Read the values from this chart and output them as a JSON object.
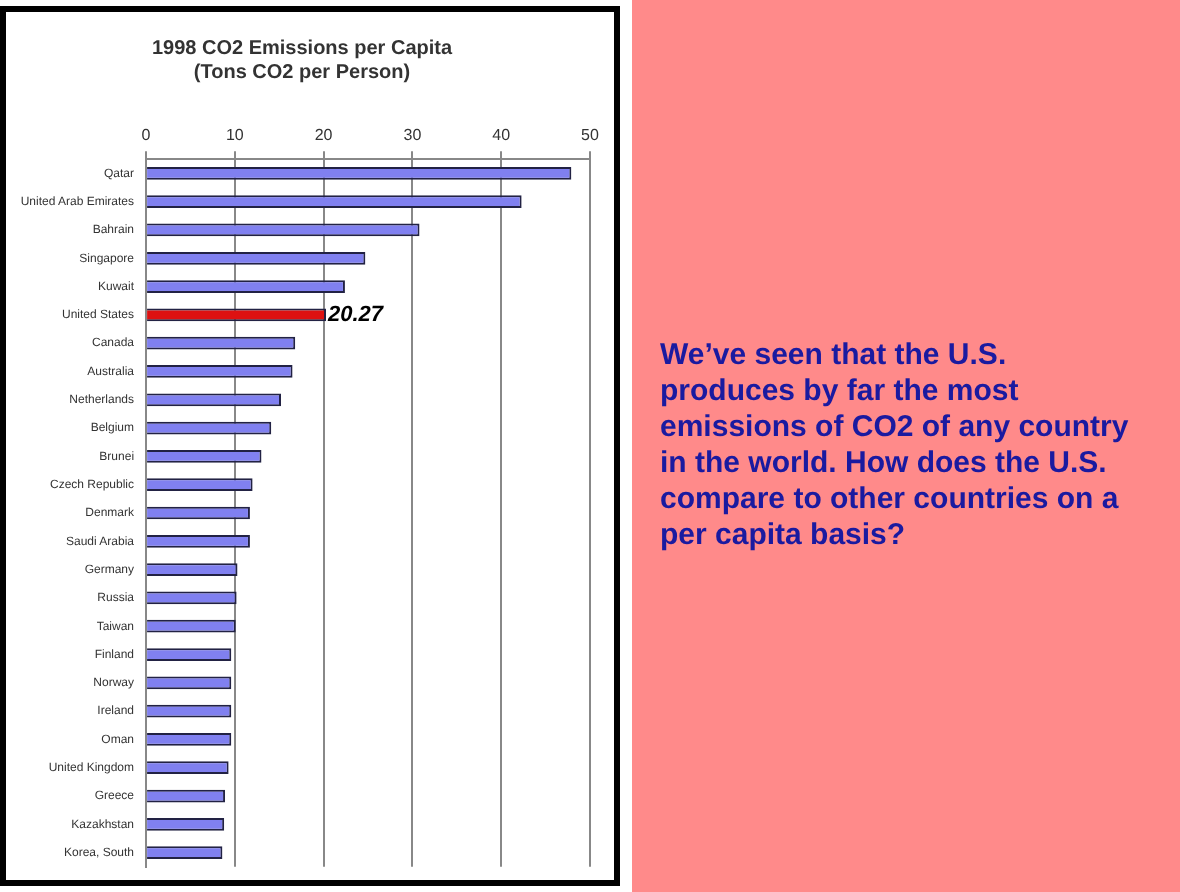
{
  "chart_data": {
    "type": "bar",
    "orientation": "horizontal",
    "title": "1998 CO2 Emissions per Capita",
    "subtitle": "(Tons CO2 per Person)",
    "categories": [
      "Qatar",
      "United Arab Emirates",
      "Bahrain",
      "Singapore",
      "Kuwait",
      "United States",
      "Canada",
      "Australia",
      "Netherlands",
      "Belgium",
      "Brunei",
      "Czech Republic",
      "Denmark",
      "Saudi Arabia",
      "Germany",
      "Russia",
      "Taiwan",
      "Finland",
      "Norway",
      "Ireland",
      "Oman",
      "United Kingdom",
      "Greece",
      "Kazakhstan",
      "Korea, South"
    ],
    "values": [
      47.9,
      42.3,
      30.8,
      24.7,
      22.4,
      20.27,
      16.8,
      16.5,
      15.2,
      14.1,
      13.0,
      12.0,
      11.7,
      11.7,
      10.3,
      10.2,
      10.1,
      9.6,
      9.6,
      9.6,
      9.6,
      9.3,
      8.9,
      8.8,
      8.6
    ],
    "colors": [
      "#8080f0",
      "#8080f0",
      "#8080f0",
      "#8080f0",
      "#8080f0",
      "#dd1111",
      "#8080f0",
      "#8080f0",
      "#8080f0",
      "#8080f0",
      "#8080f0",
      "#8080f0",
      "#8080f0",
      "#8080f0",
      "#8080f0",
      "#8080f0",
      "#8080f0",
      "#8080f0",
      "#8080f0",
      "#8080f0",
      "#8080f0",
      "#8080f0",
      "#8080f0",
      "#8080f0",
      "#8080f0"
    ],
    "value_labels": [
      null,
      null,
      null,
      null,
      null,
      "20.27",
      null,
      null,
      null,
      null,
      null,
      null,
      null,
      null,
      null,
      null,
      null,
      null,
      null,
      null,
      null,
      null,
      null,
      null,
      null
    ],
    "xlim": [
      0,
      50
    ],
    "xticks": [
      0,
      10,
      20,
      30,
      40,
      50
    ],
    "grid": "x",
    "legend": false,
    "annotations": [
      "We’ve seen that the U.S. produces by far the most emissions of CO2 of any country in the world.  How does the U.S. compare to other countries on a per capita basis?"
    ]
  }
}
